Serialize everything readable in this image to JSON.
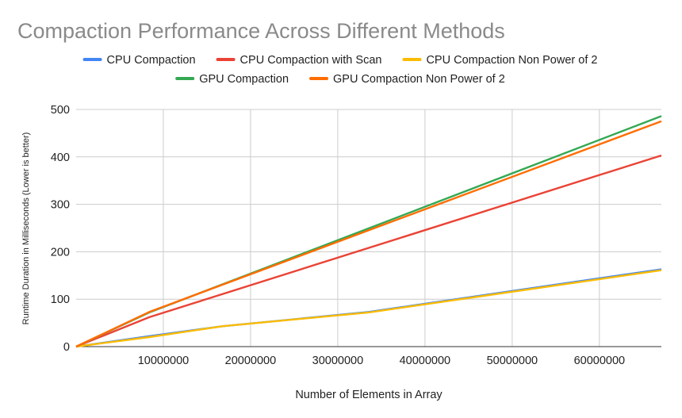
{
  "chart_data": {
    "type": "line",
    "title": "Compaction Performance Across Different Methods",
    "xlabel": "Number of Elements in Array",
    "ylabel": "Runtime Duration in Milliseconds (Lower is better)",
    "xlim": [
      0,
      67108864
    ],
    "ylim": [
      0,
      500
    ],
    "xticks": [
      10000000,
      20000000,
      30000000,
      40000000,
      50000000,
      60000000
    ],
    "xtick_labels": [
      "10000000",
      "20000000",
      "30000000",
      "40000000",
      "50000000",
      "60000000"
    ],
    "yticks": [
      0,
      100,
      200,
      300,
      400,
      500
    ],
    "ytick_labels": [
      "0",
      "100",
      "200",
      "300",
      "400",
      "500"
    ],
    "grid": true,
    "legend_position": "top",
    "series": [
      {
        "name": "CPU Compaction",
        "color": "#4285F4",
        "x": [
          0,
          8388608,
          16777216,
          33554432,
          67108864
        ],
        "y": [
          0,
          22,
          43,
          73,
          163
        ]
      },
      {
        "name": "CPU Compaction with Scan",
        "color": "#EA4335",
        "x": [
          0,
          8388608,
          67108864
        ],
        "y": [
          0,
          62,
          403
        ]
      },
      {
        "name": "CPU Compaction Non Power of 2",
        "color": "#FBBC04",
        "x": [
          0,
          8388608,
          16777216,
          33554432,
          67108864
        ],
        "y": [
          0,
          20,
          43,
          72,
          161
        ]
      },
      {
        "name": "GPU Compaction",
        "color": "#34A853",
        "x": [
          0,
          8388608,
          67108864
        ],
        "y": [
          0,
          72,
          486
        ]
      },
      {
        "name": "GPU Compaction Non Power of 2",
        "color": "#FF6D01",
        "x": [
          0,
          8388608,
          67108864
        ],
        "y": [
          0,
          73,
          475
        ]
      }
    ]
  }
}
